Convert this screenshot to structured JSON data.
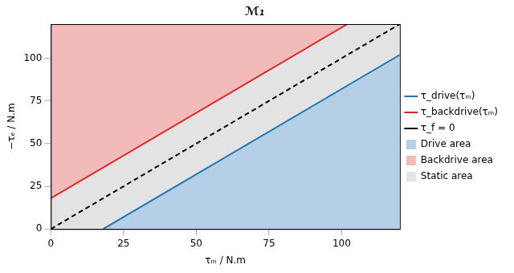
{
  "chart_data": {
    "type": "line",
    "title": "ℳ₁",
    "x_label": "τₘ / N.m",
    "y_label": "−τₑ / N.m",
    "xlim": [
      0,
      120
    ],
    "ylim": [
      0,
      120
    ],
    "xticks": [
      0,
      25,
      50,
      75,
      100
    ],
    "yticks": [
      0,
      25,
      50,
      75,
      100
    ],
    "grid": true,
    "legend": "right",
    "series": [
      {
        "name": "τ_drive(τₘ)",
        "type": "line",
        "color": "#1f77b4",
        "line_style": "solid",
        "x": [
          18,
          120
        ],
        "values": [
          0,
          102
        ]
      },
      {
        "name": "τ_backdrive(τₘ)",
        "type": "line",
        "color": "#d62728",
        "line_style": "solid",
        "x": [
          0,
          102
        ],
        "values": [
          18,
          120
        ]
      },
      {
        "name": "τ_f = 0",
        "type": "line",
        "color": "#000000",
        "line_style": "dashed",
        "x": [
          0,
          120
        ],
        "values": [
          0,
          120
        ]
      },
      {
        "name": "Drive area",
        "type": "area",
        "color": "#b5cfe7",
        "x": [
          18,
          120
        ],
        "lower": [
          0,
          0
        ],
        "upper": [
          0,
          102
        ]
      },
      {
        "name": "Backdrive area",
        "type": "area",
        "color": "#f3baba",
        "x": [
          0,
          102
        ],
        "lower": [
          18,
          120
        ],
        "upper": [
          120,
          120
        ]
      },
      {
        "name": "Static area",
        "type": "area",
        "color": "#e3e3e3",
        "x": [
          0,
          18,
          102,
          120
        ],
        "lower": [
          0,
          0,
          84,
          102
        ],
        "upper": [
          18,
          36,
          120,
          120
        ]
      }
    ]
  }
}
